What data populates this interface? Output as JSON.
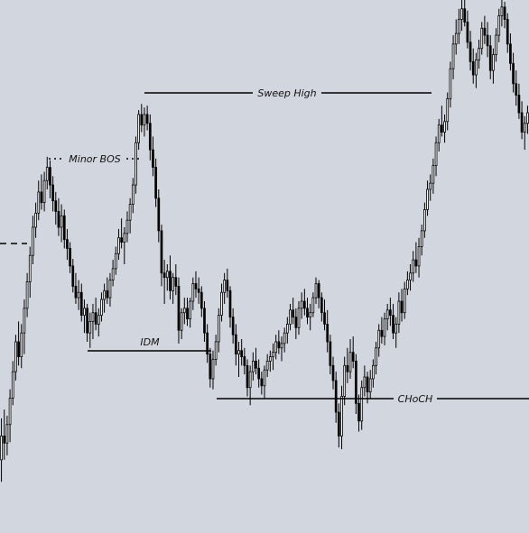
{
  "chart_data": {
    "type": "candlestick",
    "ylim": [
      1000,
      1600
    ],
    "grid": false,
    "colors": {
      "background": "#d2d6de",
      "candle": "#000000",
      "annotation": "#000000"
    },
    "candles": [
      [
        1078,
        1125,
        1053,
        1105
      ],
      [
        1105,
        1135,
        1078,
        1097
      ],
      [
        1097,
        1128,
        1083,
        1118
      ],
      [
        1118,
        1158,
        1098,
        1148
      ],
      [
        1148,
        1190,
        1140,
        1178
      ],
      [
        1178,
        1220,
        1168,
        1212
      ],
      [
        1212,
        1235,
        1185,
        1195
      ],
      [
        1195,
        1232,
        1182,
        1222
      ],
      [
        1222,
        1260,
        1198,
        1250
      ],
      [
        1250,
        1290,
        1240,
        1280
      ],
      [
        1280,
        1320,
        1262,
        1310
      ],
      [
        1310,
        1355,
        1300,
        1342
      ],
      [
        1342,
        1370,
        1330,
        1358
      ],
      [
        1358,
        1395,
        1350,
        1382
      ],
      [
        1382,
        1402,
        1362,
        1370
      ],
      [
        1370,
        1405,
        1360,
        1395
      ],
      [
        1395,
        1422,
        1385,
        1410
      ],
      [
        1410,
        1418,
        1375,
        1390
      ],
      [
        1390,
        1400,
        1360,
        1372
      ],
      [
        1372,
        1382,
        1345,
        1360
      ],
      [
        1360,
        1375,
        1332,
        1342
      ],
      [
        1342,
        1368,
        1325,
        1355
      ],
      [
        1355,
        1362,
        1318,
        1328
      ],
      [
        1328,
        1340,
        1305,
        1318
      ],
      [
        1318,
        1325,
        1290,
        1298
      ],
      [
        1298,
        1306,
        1268,
        1275
      ],
      [
        1275,
        1290,
        1255,
        1262
      ],
      [
        1262,
        1282,
        1248,
        1268
      ],
      [
        1268,
        1278,
        1235,
        1242
      ],
      [
        1242,
        1260,
        1222,
        1250
      ],
      [
        1250,
        1255,
        1212,
        1222
      ],
      [
        1222,
        1245,
        1205,
        1235
      ],
      [
        1235,
        1255,
        1215,
        1245
      ],
      [
        1245,
        1262,
        1225,
        1232
      ],
      [
        1232,
        1250,
        1218,
        1242
      ],
      [
        1242,
        1268,
        1235,
        1260
      ],
      [
        1260,
        1278,
        1245,
        1270
      ],
      [
        1270,
        1285,
        1255,
        1262
      ],
      [
        1262,
        1290,
        1252,
        1282
      ],
      [
        1282,
        1305,
        1275,
        1295
      ],
      [
        1295,
        1320,
        1288,
        1312
      ],
      [
        1312,
        1340,
        1305,
        1330
      ],
      [
        1330,
        1352,
        1318,
        1325
      ],
      [
        1325,
        1342,
        1300,
        1335
      ],
      [
        1335,
        1360,
        1325,
        1350
      ],
      [
        1350,
        1375,
        1335,
        1368
      ],
      [
        1368,
        1398,
        1358,
        1390
      ],
      [
        1390,
        1445,
        1380,
        1438
      ],
      [
        1438,
        1475,
        1430,
        1470
      ],
      [
        1470,
        1482,
        1450,
        1458
      ],
      [
        1458,
        1478,
        1445,
        1470
      ],
      [
        1470,
        1480,
        1452,
        1460
      ],
      [
        1460,
        1470,
        1418,
        1430
      ],
      [
        1430,
        1445,
        1400,
        1410
      ],
      [
        1410,
        1420,
        1365,
        1375
      ],
      [
        1375,
        1385,
        1325,
        1338
      ],
      [
        1338,
        1345,
        1275,
        1290
      ],
      [
        1290,
        1305,
        1255,
        1285
      ],
      [
        1285,
        1300,
        1270,
        1292
      ],
      [
        1292,
        1310,
        1260,
        1270
      ],
      [
        1270,
        1290,
        1255,
        1285
      ],
      [
        1285,
        1300,
        1265,
        1275
      ],
      [
        1275,
        1285,
        1210,
        1225
      ],
      [
        1225,
        1250,
        1215,
        1245
      ],
      [
        1245,
        1262,
        1232,
        1250
      ],
      [
        1250,
        1262,
        1230,
        1238
      ],
      [
        1238,
        1262,
        1228,
        1258
      ],
      [
        1258,
        1285,
        1248,
        1278
      ],
      [
        1278,
        1292,
        1262,
        1272
      ],
      [
        1272,
        1285,
        1255,
        1268
      ],
      [
        1268,
        1275,
        1240,
        1250
      ],
      [
        1250,
        1258,
        1212,
        1222
      ],
      [
        1222,
        1232,
        1188,
        1198
      ],
      [
        1198,
        1205,
        1160,
        1170
      ],
      [
        1170,
        1202,
        1158,
        1192
      ],
      [
        1192,
        1220,
        1185,
        1212
      ],
      [
        1212,
        1250,
        1200,
        1242
      ],
      [
        1242,
        1278,
        1235,
        1268
      ],
      [
        1268,
        1290,
        1255,
        1282
      ],
      [
        1282,
        1295,
        1262,
        1270
      ],
      [
        1270,
        1275,
        1228,
        1240
      ],
      [
        1240,
        1250,
        1210,
        1220
      ],
      [
        1220,
        1232,
        1185,
        1198
      ],
      [
        1198,
        1212,
        1172,
        1202
      ],
      [
        1202,
        1215,
        1185,
        1195
      ],
      [
        1195,
        1205,
        1175,
        1185
      ],
      [
        1185,
        1192,
        1150,
        1160
      ],
      [
        1160,
        1185,
        1140,
        1178
      ],
      [
        1178,
        1200,
        1168,
        1190
      ],
      [
        1190,
        1205,
        1175,
        1182
      ],
      [
        1182,
        1192,
        1160,
        1170
      ],
      [
        1170,
        1178,
        1152,
        1162
      ],
      [
        1162,
        1185,
        1148,
        1180
      ],
      [
        1180,
        1198,
        1172,
        1190
      ],
      [
        1190,
        1202,
        1178,
        1195
      ],
      [
        1195,
        1210,
        1180,
        1200
      ],
      [
        1200,
        1220,
        1192,
        1212
      ],
      [
        1212,
        1225,
        1198,
        1205
      ],
      [
        1205,
        1218,
        1190,
        1210
      ],
      [
        1210,
        1228,
        1200,
        1222
      ],
      [
        1222,
        1240,
        1210,
        1232
      ],
      [
        1232,
        1255,
        1225,
        1248
      ],
      [
        1248,
        1262,
        1232,
        1240
      ],
      [
        1240,
        1250,
        1215,
        1228
      ],
      [
        1228,
        1258,
        1220,
        1250
      ],
      [
        1250,
        1268,
        1238,
        1258
      ],
      [
        1258,
        1272,
        1242,
        1250
      ],
      [
        1250,
        1262,
        1232,
        1240
      ],
      [
        1240,
        1255,
        1225,
        1245
      ],
      [
        1245,
        1268,
        1240,
        1262
      ],
      [
        1262,
        1285,
        1255,
        1278
      ],
      [
        1278,
        1282,
        1250,
        1262
      ],
      [
        1262,
        1268,
        1235,
        1245
      ],
      [
        1245,
        1260,
        1225,
        1232
      ],
      [
        1232,
        1248,
        1200,
        1212
      ],
      [
        1212,
        1220,
        1175,
        1185
      ],
      [
        1185,
        1195,
        1158,
        1168
      ],
      [
        1168,
        1178,
        1120,
        1132
      ],
      [
        1132,
        1142,
        1092,
        1105
      ],
      [
        1105,
        1162,
        1090,
        1150
      ],
      [
        1150,
        1195,
        1140,
        1185
      ],
      [
        1185,
        1205,
        1165,
        1178
      ],
      [
        1178,
        1215,
        1170,
        1200
      ],
      [
        1200,
        1218,
        1182,
        1190
      ],
      [
        1190,
        1198,
        1130,
        1142
      ],
      [
        1142,
        1152,
        1110,
        1122
      ],
      [
        1122,
        1168,
        1112,
        1160
      ],
      [
        1160,
        1185,
        1150,
        1172
      ],
      [
        1172,
        1178,
        1142,
        1155
      ],
      [
        1155,
        1180,
        1148,
        1170
      ],
      [
        1170,
        1192,
        1160,
        1185
      ],
      [
        1185,
        1212,
        1175,
        1205
      ],
      [
        1205,
        1232,
        1195,
        1225
      ],
      [
        1225,
        1240,
        1210,
        1218
      ],
      [
        1218,
        1245,
        1208,
        1238
      ],
      [
        1238,
        1255,
        1225,
        1248
      ],
      [
        1248,
        1262,
        1230,
        1242
      ],
      [
        1242,
        1255,
        1215,
        1222
      ],
      [
        1222,
        1240,
        1205,
        1232
      ],
      [
        1232,
        1268,
        1222,
        1258
      ],
      [
        1258,
        1272,
        1235,
        1245
      ],
      [
        1245,
        1280,
        1238,
        1272
      ],
      [
        1272,
        1292,
        1265,
        1282
      ],
      [
        1282,
        1300,
        1270,
        1290
      ],
      [
        1290,
        1315,
        1280,
        1305
      ],
      [
        1305,
        1325,
        1290,
        1298
      ],
      [
        1298,
        1330,
        1285,
        1320
      ],
      [
        1320,
        1345,
        1310,
        1338
      ],
      [
        1338,
        1370,
        1330,
        1362
      ],
      [
        1362,
        1395,
        1355,
        1385
      ],
      [
        1385,
        1402,
        1372,
        1392
      ],
      [
        1392,
        1420,
        1380,
        1412
      ],
      [
        1412,
        1445,
        1400,
        1438
      ],
      [
        1438,
        1465,
        1428,
        1458
      ],
      [
        1458,
        1480,
        1445,
        1450
      ],
      [
        1450,
        1470,
        1438,
        1462
      ],
      [
        1462,
        1495,
        1452,
        1488
      ],
      [
        1488,
        1530,
        1478,
        1522
      ],
      [
        1522,
        1560,
        1510,
        1550
      ],
      [
        1550,
        1578,
        1538,
        1562
      ],
      [
        1562,
        1590,
        1550,
        1578
      ],
      [
        1578,
        1600,
        1565,
        1590
      ],
      [
        1590,
        1605,
        1570,
        1575
      ],
      [
        1575,
        1588,
        1545,
        1552
      ],
      [
        1552,
        1565,
        1520,
        1530
      ],
      [
        1530,
        1545,
        1505,
        1515
      ],
      [
        1515,
        1540,
        1500,
        1532
      ],
      [
        1532,
        1555,
        1522,
        1545
      ],
      [
        1545,
        1575,
        1538,
        1568
      ],
      [
        1568,
        1582,
        1550,
        1560
      ],
      [
        1560,
        1575,
        1535,
        1548
      ],
      [
        1548,
        1560,
        1510,
        1520
      ],
      [
        1520,
        1545,
        1505,
        1538
      ],
      [
        1538,
        1568,
        1530,
        1560
      ],
      [
        1560,
        1590,
        1552,
        1582
      ],
      [
        1582,
        1600,
        1570,
        1592
      ],
      [
        1592,
        1598,
        1568,
        1578
      ],
      [
        1578,
        1585,
        1540,
        1550
      ],
      [
        1550,
        1562,
        1520,
        1528
      ],
      [
        1528,
        1540,
        1495,
        1505
      ],
      [
        1505,
        1520,
        1480,
        1492
      ],
      [
        1492,
        1505,
        1465,
        1472
      ],
      [
        1472,
        1485,
        1442,
        1450
      ],
      [
        1450,
        1468,
        1430,
        1460
      ],
      [
        1460,
        1480,
        1448,
        1472
      ]
    ],
    "series_marks": [
      [
        0,
        1082,
        1112,
        1060,
        1100
      ],
      [
        3,
        1080,
        1102,
        1062,
        1094
      ],
      [
        6,
        1094,
        1120,
        1075,
        1110
      ],
      [
        9,
        1110,
        1148,
        1098,
        1142
      ],
      [
        12,
        1140,
        1178,
        1128,
        1172
      ],
      [
        15,
        1172,
        1215,
        1160,
        1206
      ],
      [
        18,
        1206,
        1240,
        1192,
        1232
      ],
      [
        21,
        1232,
        1270,
        1218,
        1262
      ],
      [
        24,
        1262,
        1308,
        1250,
        1300
      ],
      [
        27,
        1300,
        1342,
        1292,
        1334
      ],
      [
        30,
        1334,
        1370,
        1322,
        1362
      ],
      [
        33,
        1362,
        1392,
        1350,
        1378
      ],
      [
        36,
        1378,
        1402,
        1362,
        1390
      ],
      [
        39,
        1390,
        1418,
        1378,
        1408
      ],
      [
        42,
        1408,
        1424,
        1386,
        1392
      ],
      [
        45,
        1392,
        1408,
        1370,
        1380
      ],
      [
        48,
        1380,
        1398,
        1360,
        1372
      ],
      [
        51,
        1372,
        1388,
        1350,
        1362
      ],
      [
        54,
        1362,
        1380,
        1340,
        1352
      ],
      [
        57,
        1352,
        1368,
        1318,
        1326
      ],
      [
        60,
        1326,
        1350,
        1300,
        1318
      ],
      [
        63,
        1318,
        1332,
        1286,
        1298
      ],
      [
        66,
        1298,
        1306,
        1266,
        1272
      ],
      [
        69,
        1272,
        1290,
        1254,
        1284
      ],
      [
        72,
        1284,
        1296,
        1258,
        1262
      ],
      [
        75,
        1262,
        1270,
        1232,
        1240
      ],
      [
        78,
        1240,
        1256,
        1218,
        1250
      ],
      [
        81,
        1250,
        1262,
        1228,
        1232
      ],
      [
        84,
        1232,
        1248,
        1212,
        1228
      ],
      [
        87,
        1228,
        1244,
        1210,
        1238
      ],
      [
        90,
        1238,
        1262,
        1230,
        1256
      ],
      [
        93,
        1256,
        1272,
        1240,
        1262
      ],
      [
        96,
        1262,
        1286,
        1252,
        1280
      ],
      [
        99,
        1280,
        1300,
        1270,
        1292
      ],
      [
        102,
        1292,
        1318,
        1285,
        1310
      ],
      [
        105,
        1310,
        1338,
        1300,
        1328
      ],
      [
        108,
        1328,
        1356,
        1318,
        1350
      ],
      [
        111,
        1350,
        1382,
        1340,
        1376
      ],
      [
        114,
        1376,
        1410,
        1368,
        1402
      ],
      [
        117,
        1402,
        1440,
        1392,
        1430
      ],
      [
        120,
        1430,
        1468,
        1420,
        1462
      ],
      [
        123,
        1462,
        1478,
        1442,
        1450
      ],
      [
        126,
        1450,
        1474,
        1440,
        1466
      ],
      [
        129,
        1466,
        1478,
        1446,
        1454
      ],
      [
        132,
        1454,
        1460,
        1418,
        1424
      ],
      [
        135,
        1424,
        1438,
        1396,
        1402
      ],
      [
        138,
        1402,
        1410,
        1360,
        1368
      ],
      [
        141,
        1368,
        1376,
        1318,
        1326
      ],
      [
        144,
        1326,
        1332,
        1270,
        1282
      ],
      [
        147,
        1282,
        1300,
        1248,
        1290
      ],
      [
        150,
        1290,
        1306,
        1262,
        1300
      ],
      [
        153,
        1300,
        1312,
        1256,
        1266
      ],
      [
        156,
        1266,
        1288,
        1250,
        1280
      ],
      [
        159,
        1280,
        1298,
        1262,
        1270
      ],
      [
        162,
        1270,
        1282,
        1206,
        1220
      ],
      [
        165,
        1220,
        1248,
        1212,
        1240
      ],
      [
        168,
        1240,
        1258,
        1228,
        1248
      ],
      [
        171,
        1248,
        1260,
        1226,
        1234
      ],
      [
        174,
        1234,
        1258,
        1224,
        1252
      ],
      [
        177,
        1252,
        1282,
        1244,
        1274
      ]
    ],
    "annotations": [
      {
        "label": "Sweep High",
        "style": "solid",
        "price": 1538
      },
      {
        "label": "Minor BOS",
        "style": "dotted",
        "price": 1470
      },
      {
        "label": "IDM",
        "style": "solid",
        "price": 1228
      },
      {
        "label": "CHoCH",
        "style": "solid",
        "price": 1180
      },
      {
        "label": "",
        "style": "dashed",
        "price": 1420
      }
    ]
  }
}
